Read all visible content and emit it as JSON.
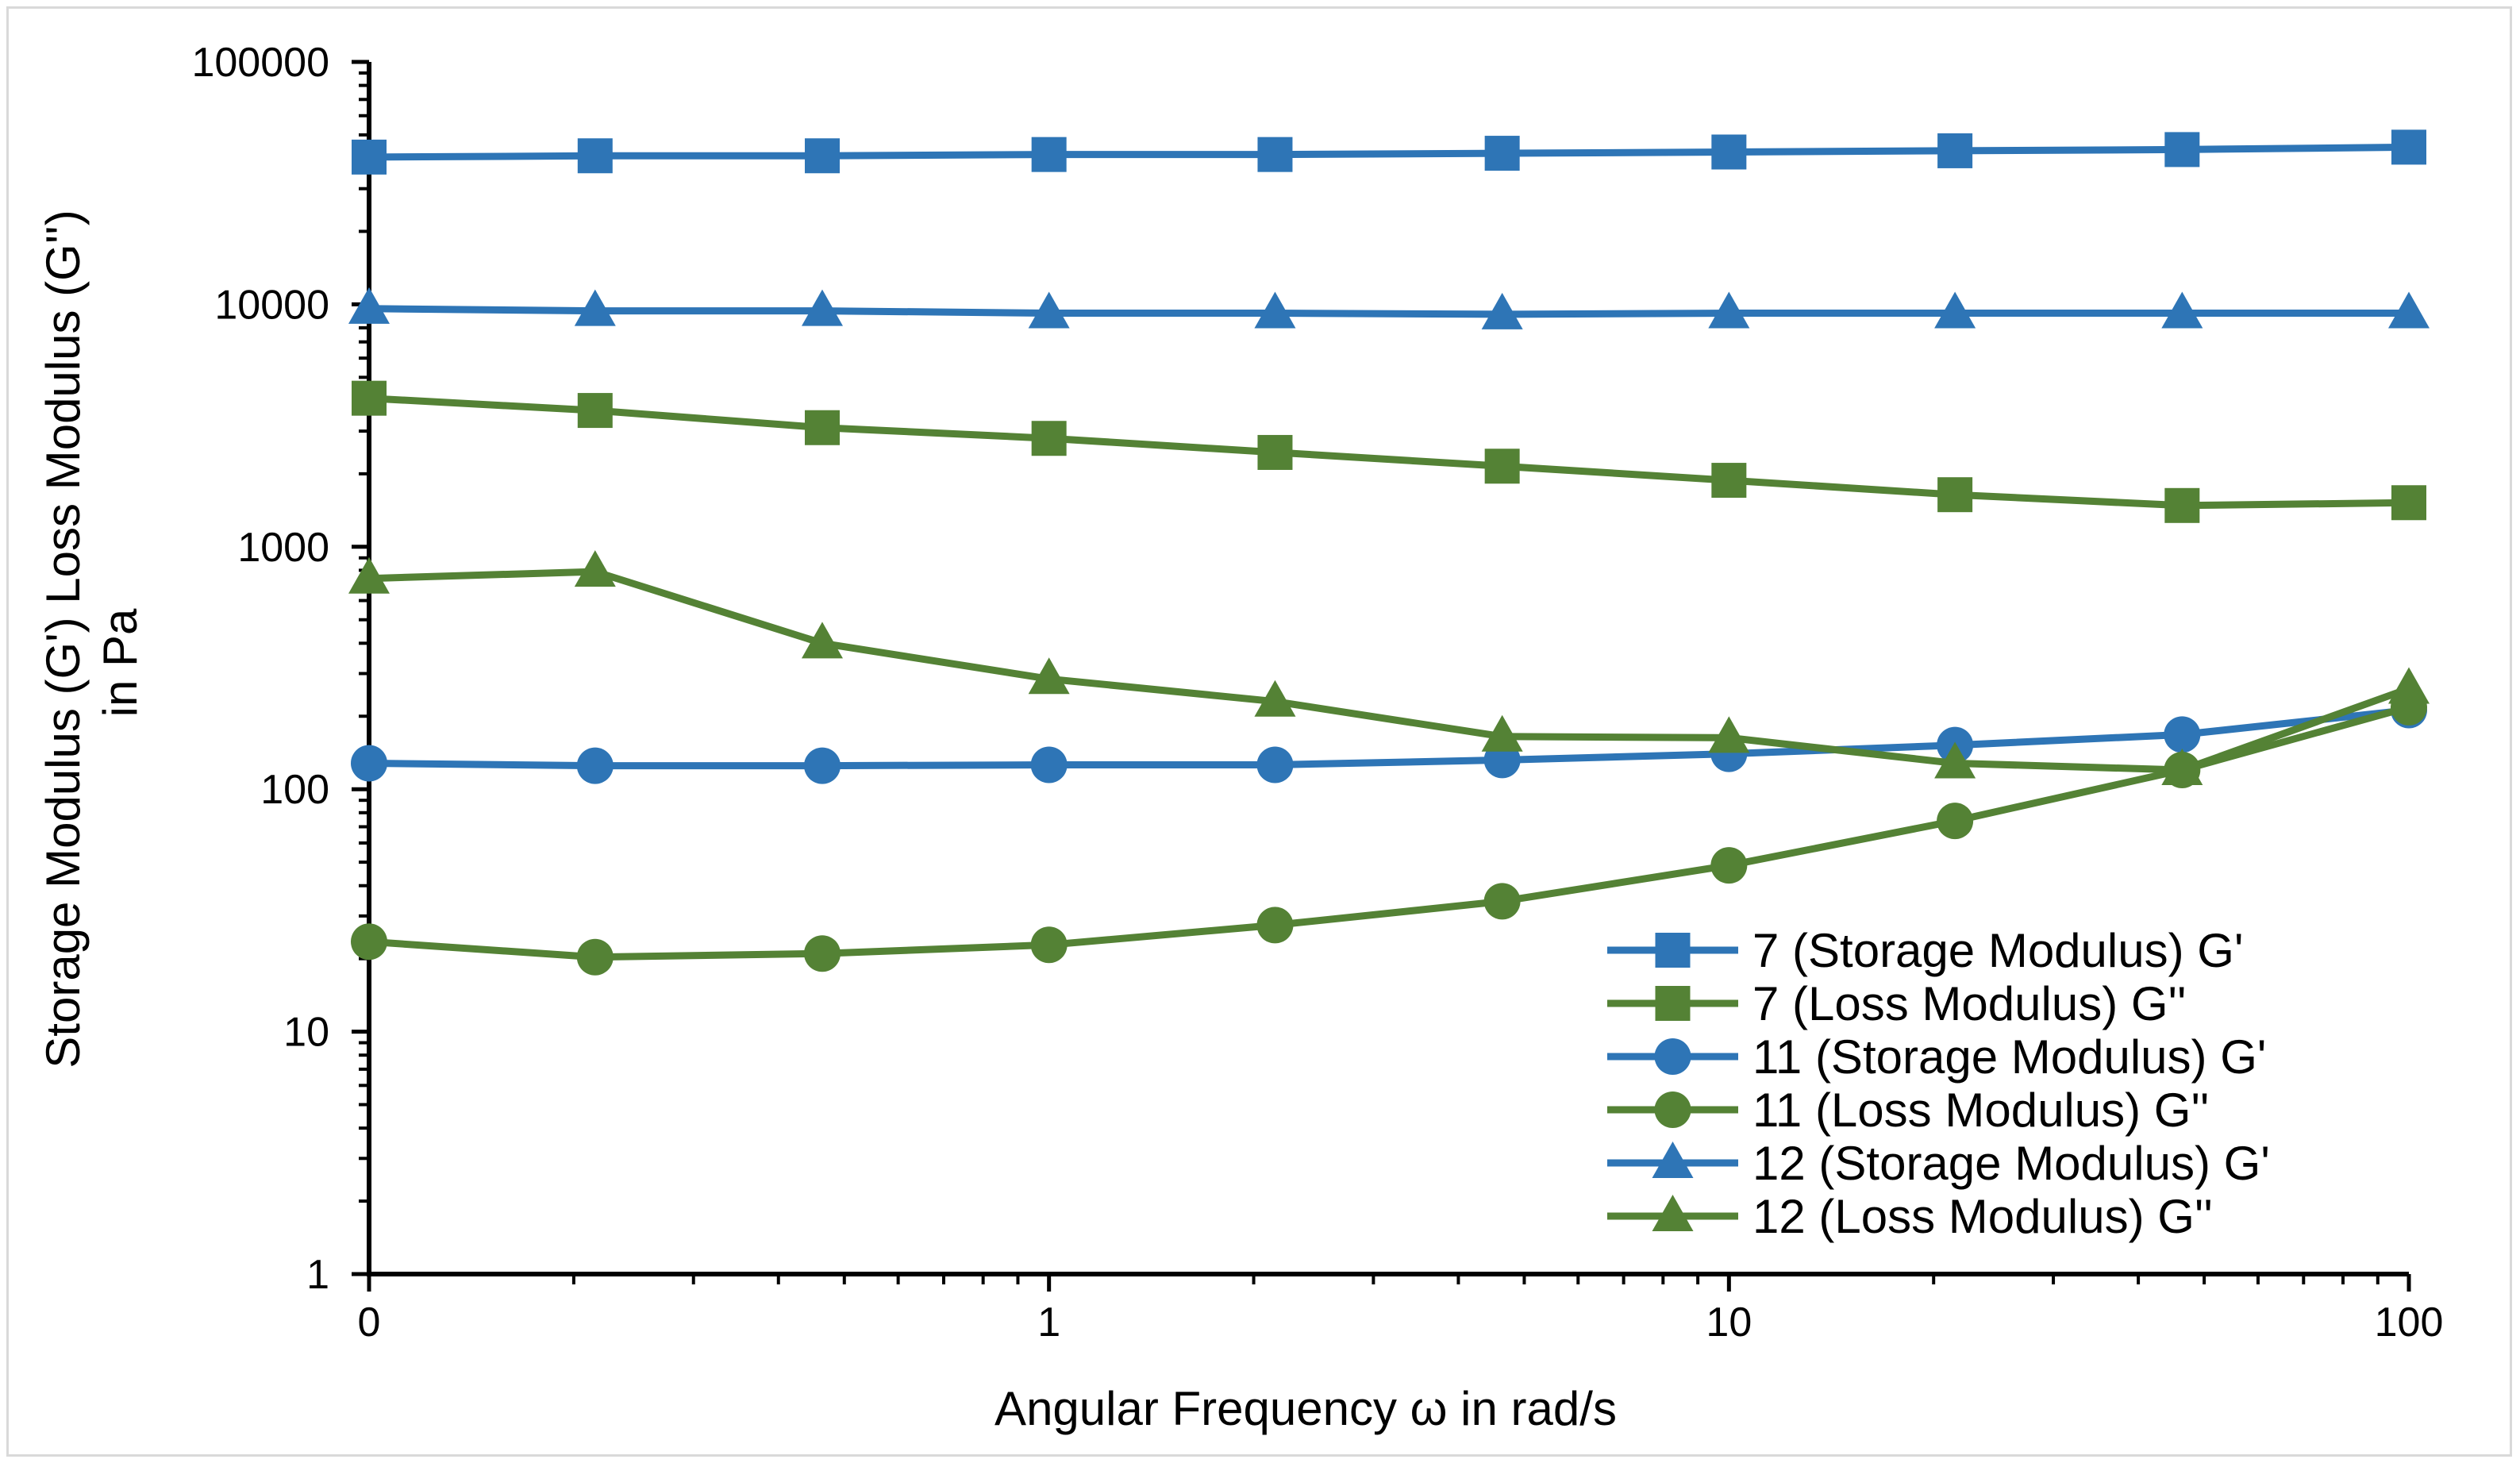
{
  "chart_data": {
    "type": "line",
    "xscale": "log",
    "yscale": "log",
    "xlabel": "Angular Frequency ω  in rad/s",
    "ylabel_line1": "Storage Modulus (G')     Loss Modulus (G'')",
    "ylabel_line2": "in  Pa",
    "xlim": [
      0.1,
      100
    ],
    "ylim": [
      1,
      100000
    ],
    "xtick_labels": [
      "0",
      "1",
      "10",
      "100"
    ],
    "xtick_values": [
      0.1,
      1,
      10,
      100
    ],
    "ytick_labels": [
      "1",
      "10",
      "100",
      "1000",
      "10000",
      "100000"
    ],
    "ytick_values": [
      1,
      10,
      100,
      1000,
      10000,
      100000
    ],
    "x": [
      0.1,
      0.215,
      0.464,
      1,
      2.15,
      4.64,
      10,
      21.5,
      46.4,
      100
    ],
    "series": [
      {
        "name": "7 (Storage Modulus) G'",
        "color": "#2e75b6",
        "marker": "square",
        "values": [
          40500,
          41000,
          41000,
          41500,
          41500,
          42000,
          42500,
          43000,
          43500,
          44500
        ]
      },
      {
        "name": "7 (Loss Modulus) G''",
        "color": "#548235",
        "marker": "square",
        "values": [
          4100,
          3650,
          3100,
          2800,
          2450,
          2150,
          1880,
          1640,
          1480,
          1520
        ]
      },
      {
        "name": "11 (Storage Modulus) G'",
        "color": "#2e75b6",
        "marker": "circle",
        "values": [
          128,
          125,
          125,
          126,
          126,
          132,
          140,
          152,
          168,
          212
        ]
      },
      {
        "name": "11 (Loss Modulus) G''",
        "color": "#548235",
        "marker": "circle",
        "values": [
          23.5,
          20.3,
          21,
          22.8,
          27.5,
          34.5,
          48.5,
          74,
          120,
          218
        ]
      },
      {
        "name": "12 (Storage Modulus) G'",
        "color": "#2e75b6",
        "marker": "triangle",
        "values": [
          9600,
          9400,
          9400,
          9200,
          9200,
          9100,
          9200,
          9200,
          9200,
          9200
        ]
      },
      {
        "name": "12 (Loss Modulus) G''",
        "color": "#548235",
        "marker": "triangle",
        "values": [
          740,
          790,
          400,
          285,
          230,
          165,
          163,
          128,
          120,
          260
        ]
      }
    ],
    "legend_position": "bottom-right"
  }
}
